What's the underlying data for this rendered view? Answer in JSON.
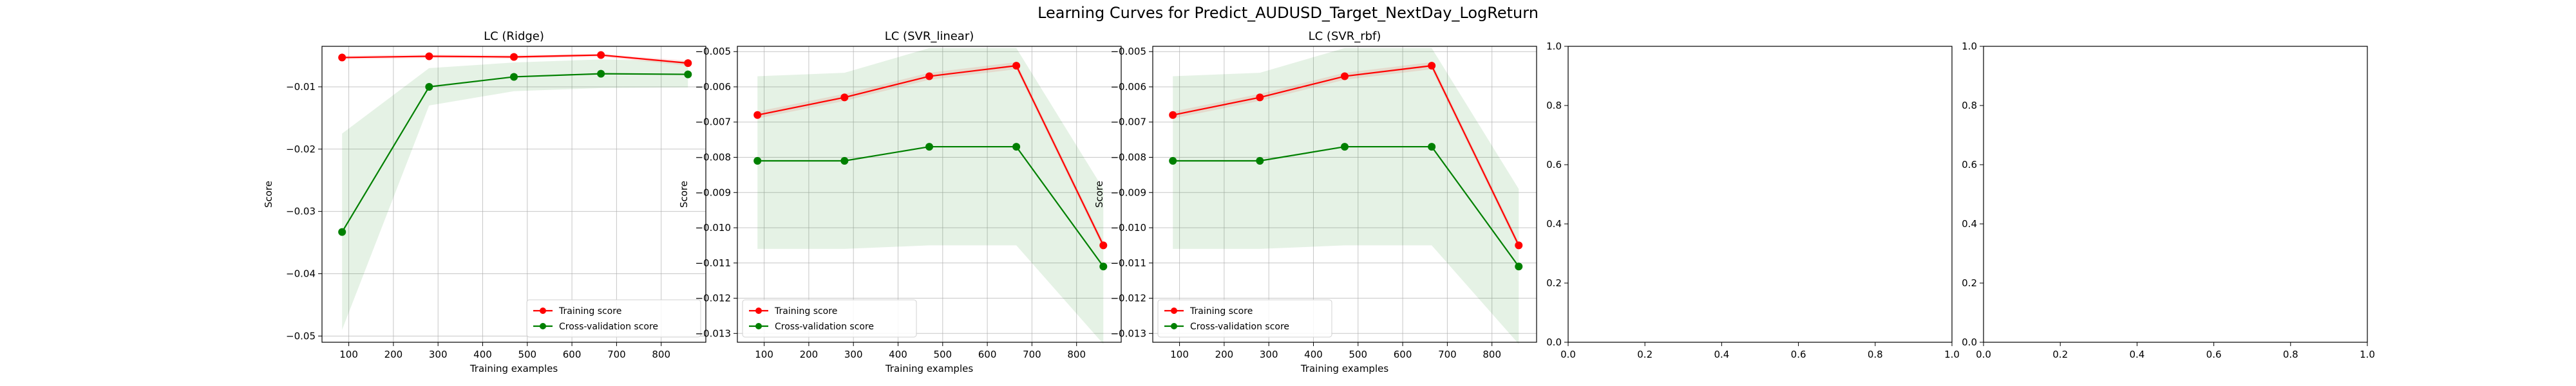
{
  "figure": {
    "suptitle": "Learning Curves for Predict_AUDUSD_Target_NextDay_LogReturn"
  },
  "chart_data": [
    {
      "type": "line",
      "title": "LC (Ridge)",
      "xlabel": "Training examples",
      "ylabel": "Score",
      "xlim": [
        40,
        900
      ],
      "ylim": [
        -0.051,
        -0.0035
      ],
      "xticks": [
        100,
        200,
        300,
        400,
        500,
        600,
        700,
        800
      ],
      "yticks": [
        -0.05,
        -0.04,
        -0.03,
        -0.02,
        -0.01
      ],
      "ytick_labels": [
        "−0.05",
        "−0.04",
        "−0.03",
        "−0.02",
        "−0.01"
      ],
      "grid": true,
      "legend_position": "lower right",
      "x": [
        85,
        280,
        470,
        665,
        860
      ],
      "series": [
        {
          "name": "Training score",
          "color": "#ff0000",
          "values": [
            -0.0053,
            -0.0051,
            -0.0052,
            -0.0049,
            -0.0062
          ],
          "band": [
            [
              -0.005,
              -0.0056
            ],
            [
              -0.0048,
              -0.0054
            ],
            [
              -0.0049,
              -0.0055
            ],
            [
              -0.0047,
              -0.0052
            ],
            [
              -0.0058,
              -0.0066
            ]
          ]
        },
        {
          "name": "Cross-validation score",
          "color": "#008000",
          "values": [
            -0.0333,
            -0.01,
            -0.0084,
            -0.0079,
            -0.008
          ],
          "band": [
            [
              -0.0175,
              -0.049
            ],
            [
              -0.007,
              -0.013
            ],
            [
              -0.0061,
              -0.0107
            ],
            [
              -0.0056,
              -0.0102
            ],
            [
              -0.0059,
              -0.0101
            ]
          ]
        }
      ]
    },
    {
      "type": "line",
      "title": "LC (SVR_linear)",
      "xlabel": "Training examples",
      "ylabel": "Score",
      "xlim": [
        40,
        900
      ],
      "ylim": [
        -0.01325,
        -0.00485
      ],
      "xticks": [
        100,
        200,
        300,
        400,
        500,
        600,
        700,
        800
      ],
      "yticks": [
        -0.013,
        -0.012,
        -0.011,
        -0.01,
        -0.009,
        -0.008,
        -0.007,
        -0.006,
        -0.005
      ],
      "ytick_labels": [
        "−0.013",
        "−0.012",
        "−0.011",
        "−0.010",
        "−0.009",
        "−0.008",
        "−0.007",
        "−0.006",
        "−0.005"
      ],
      "grid": true,
      "legend_position": "lower left",
      "x": [
        85,
        280,
        470,
        665,
        860
      ],
      "series": [
        {
          "name": "Training score",
          "color": "#ff0000",
          "values": [
            -0.0068,
            -0.0063,
            -0.0057,
            -0.0054,
            -0.0105
          ],
          "band": [
            [
              -0.0067,
              -0.0069
            ],
            [
              -0.0062,
              -0.0064
            ],
            [
              -0.0056,
              -0.0058
            ],
            [
              -0.0053,
              -0.0055
            ],
            [
              -0.0104,
              -0.0106
            ]
          ]
        },
        {
          "name": "Cross-validation score",
          "color": "#008000",
          "values": [
            -0.0081,
            -0.0081,
            -0.0077,
            -0.0077,
            -0.0111
          ],
          "band": [
            [
              -0.0057,
              -0.0106
            ],
            [
              -0.0056,
              -0.0106
            ],
            [
              -0.0049,
              -0.0105
            ],
            [
              -0.0049,
              -0.0105
            ],
            [
              -0.0089,
              -0.0133
            ]
          ]
        }
      ]
    },
    {
      "type": "line",
      "title": "LC (SVR_rbf)",
      "xlabel": "Training examples",
      "ylabel": "Score",
      "xlim": [
        40,
        900
      ],
      "ylim": [
        -0.01325,
        -0.00485
      ],
      "xticks": [
        100,
        200,
        300,
        400,
        500,
        600,
        700,
        800
      ],
      "yticks": [
        -0.013,
        -0.012,
        -0.011,
        -0.01,
        -0.009,
        -0.008,
        -0.007,
        -0.006,
        -0.005
      ],
      "ytick_labels": [
        "−0.013",
        "−0.012",
        "−0.011",
        "−0.010",
        "−0.009",
        "−0.008",
        "−0.007",
        "−0.006",
        "−0.005"
      ],
      "grid": true,
      "legend_position": "lower left",
      "x": [
        85,
        280,
        470,
        665,
        860
      ],
      "series": [
        {
          "name": "Training score",
          "color": "#ff0000",
          "values": [
            -0.0068,
            -0.0063,
            -0.0057,
            -0.0054,
            -0.0105
          ],
          "band": [
            [
              -0.0067,
              -0.0069
            ],
            [
              -0.0062,
              -0.0064
            ],
            [
              -0.0056,
              -0.0058
            ],
            [
              -0.0053,
              -0.0055
            ],
            [
              -0.0104,
              -0.0106
            ]
          ]
        },
        {
          "name": "Cross-validation score",
          "color": "#008000",
          "values": [
            -0.0081,
            -0.0081,
            -0.0077,
            -0.0077,
            -0.0111
          ],
          "band": [
            [
              -0.0057,
              -0.0106
            ],
            [
              -0.0056,
              -0.0106
            ],
            [
              -0.0049,
              -0.0105
            ],
            [
              -0.0049,
              -0.0105
            ],
            [
              -0.0089,
              -0.0133
            ]
          ]
        }
      ]
    },
    {
      "type": "line",
      "title": "",
      "xlabel": "",
      "ylabel": "",
      "xlim": [
        0,
        1
      ],
      "ylim": [
        0,
        1
      ],
      "xticks": [
        0.0,
        0.2,
        0.4,
        0.6,
        0.8,
        1.0
      ],
      "yticks": [
        0.0,
        0.2,
        0.4,
        0.6,
        0.8,
        1.0
      ],
      "xtick_labels": [
        "0.0",
        "0.2",
        "0.4",
        "0.6",
        "0.8",
        "1.0"
      ],
      "ytick_labels": [
        "0.0",
        "0.2",
        "0.4",
        "0.6",
        "0.8",
        "1.0"
      ],
      "grid": false,
      "series": []
    },
    {
      "type": "line",
      "title": "",
      "xlabel": "",
      "ylabel": "",
      "xlim": [
        0,
        1
      ],
      "ylim": [
        0,
        1
      ],
      "xticks": [
        0.0,
        0.2,
        0.4,
        0.6,
        0.8,
        1.0
      ],
      "yticks": [
        0.0,
        0.2,
        0.4,
        0.6,
        0.8,
        1.0
      ],
      "xtick_labels": [
        "0.0",
        "0.2",
        "0.4",
        "0.6",
        "0.8",
        "1.0"
      ],
      "ytick_labels": [
        "0.0",
        "0.2",
        "0.4",
        "0.6",
        "0.8",
        "1.0"
      ],
      "grid": false,
      "series": []
    }
  ]
}
